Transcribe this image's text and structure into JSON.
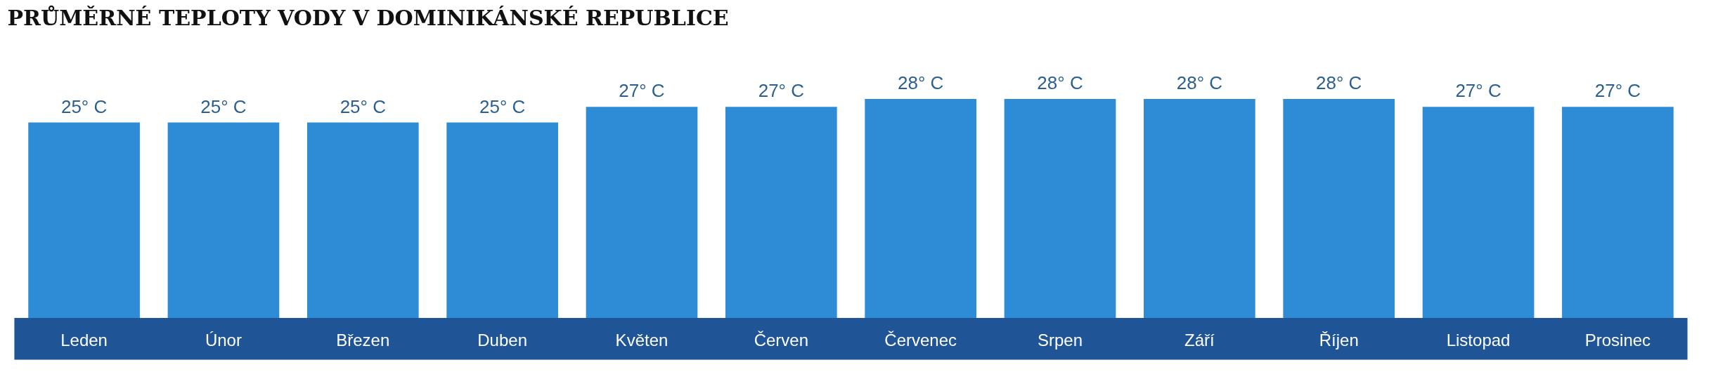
{
  "chart_data": {
    "type": "bar",
    "title": "PRŮMĚRNÉ TEPLOTY VODY V DOMINIKÁNSKÉ REPUBLICE",
    "categories": [
      "Leden",
      "Únor",
      "Březen",
      "Duben",
      "Květen",
      "Červen",
      "Červenec",
      "Srpen",
      "Září",
      "Říjen",
      "Listopad",
      "Prosinec"
    ],
    "values": [
      25,
      25,
      25,
      25,
      27,
      27,
      28,
      28,
      28,
      28,
      27,
      27
    ],
    "value_labels": [
      "25° C",
      "25° C",
      "25° C",
      "25° C",
      "27° C",
      "27° C",
      "28° C",
      "28° C",
      "28° C",
      "28° C",
      "27° C",
      "27° C"
    ],
    "color": "#2e8bd6",
    "grid": false
  }
}
